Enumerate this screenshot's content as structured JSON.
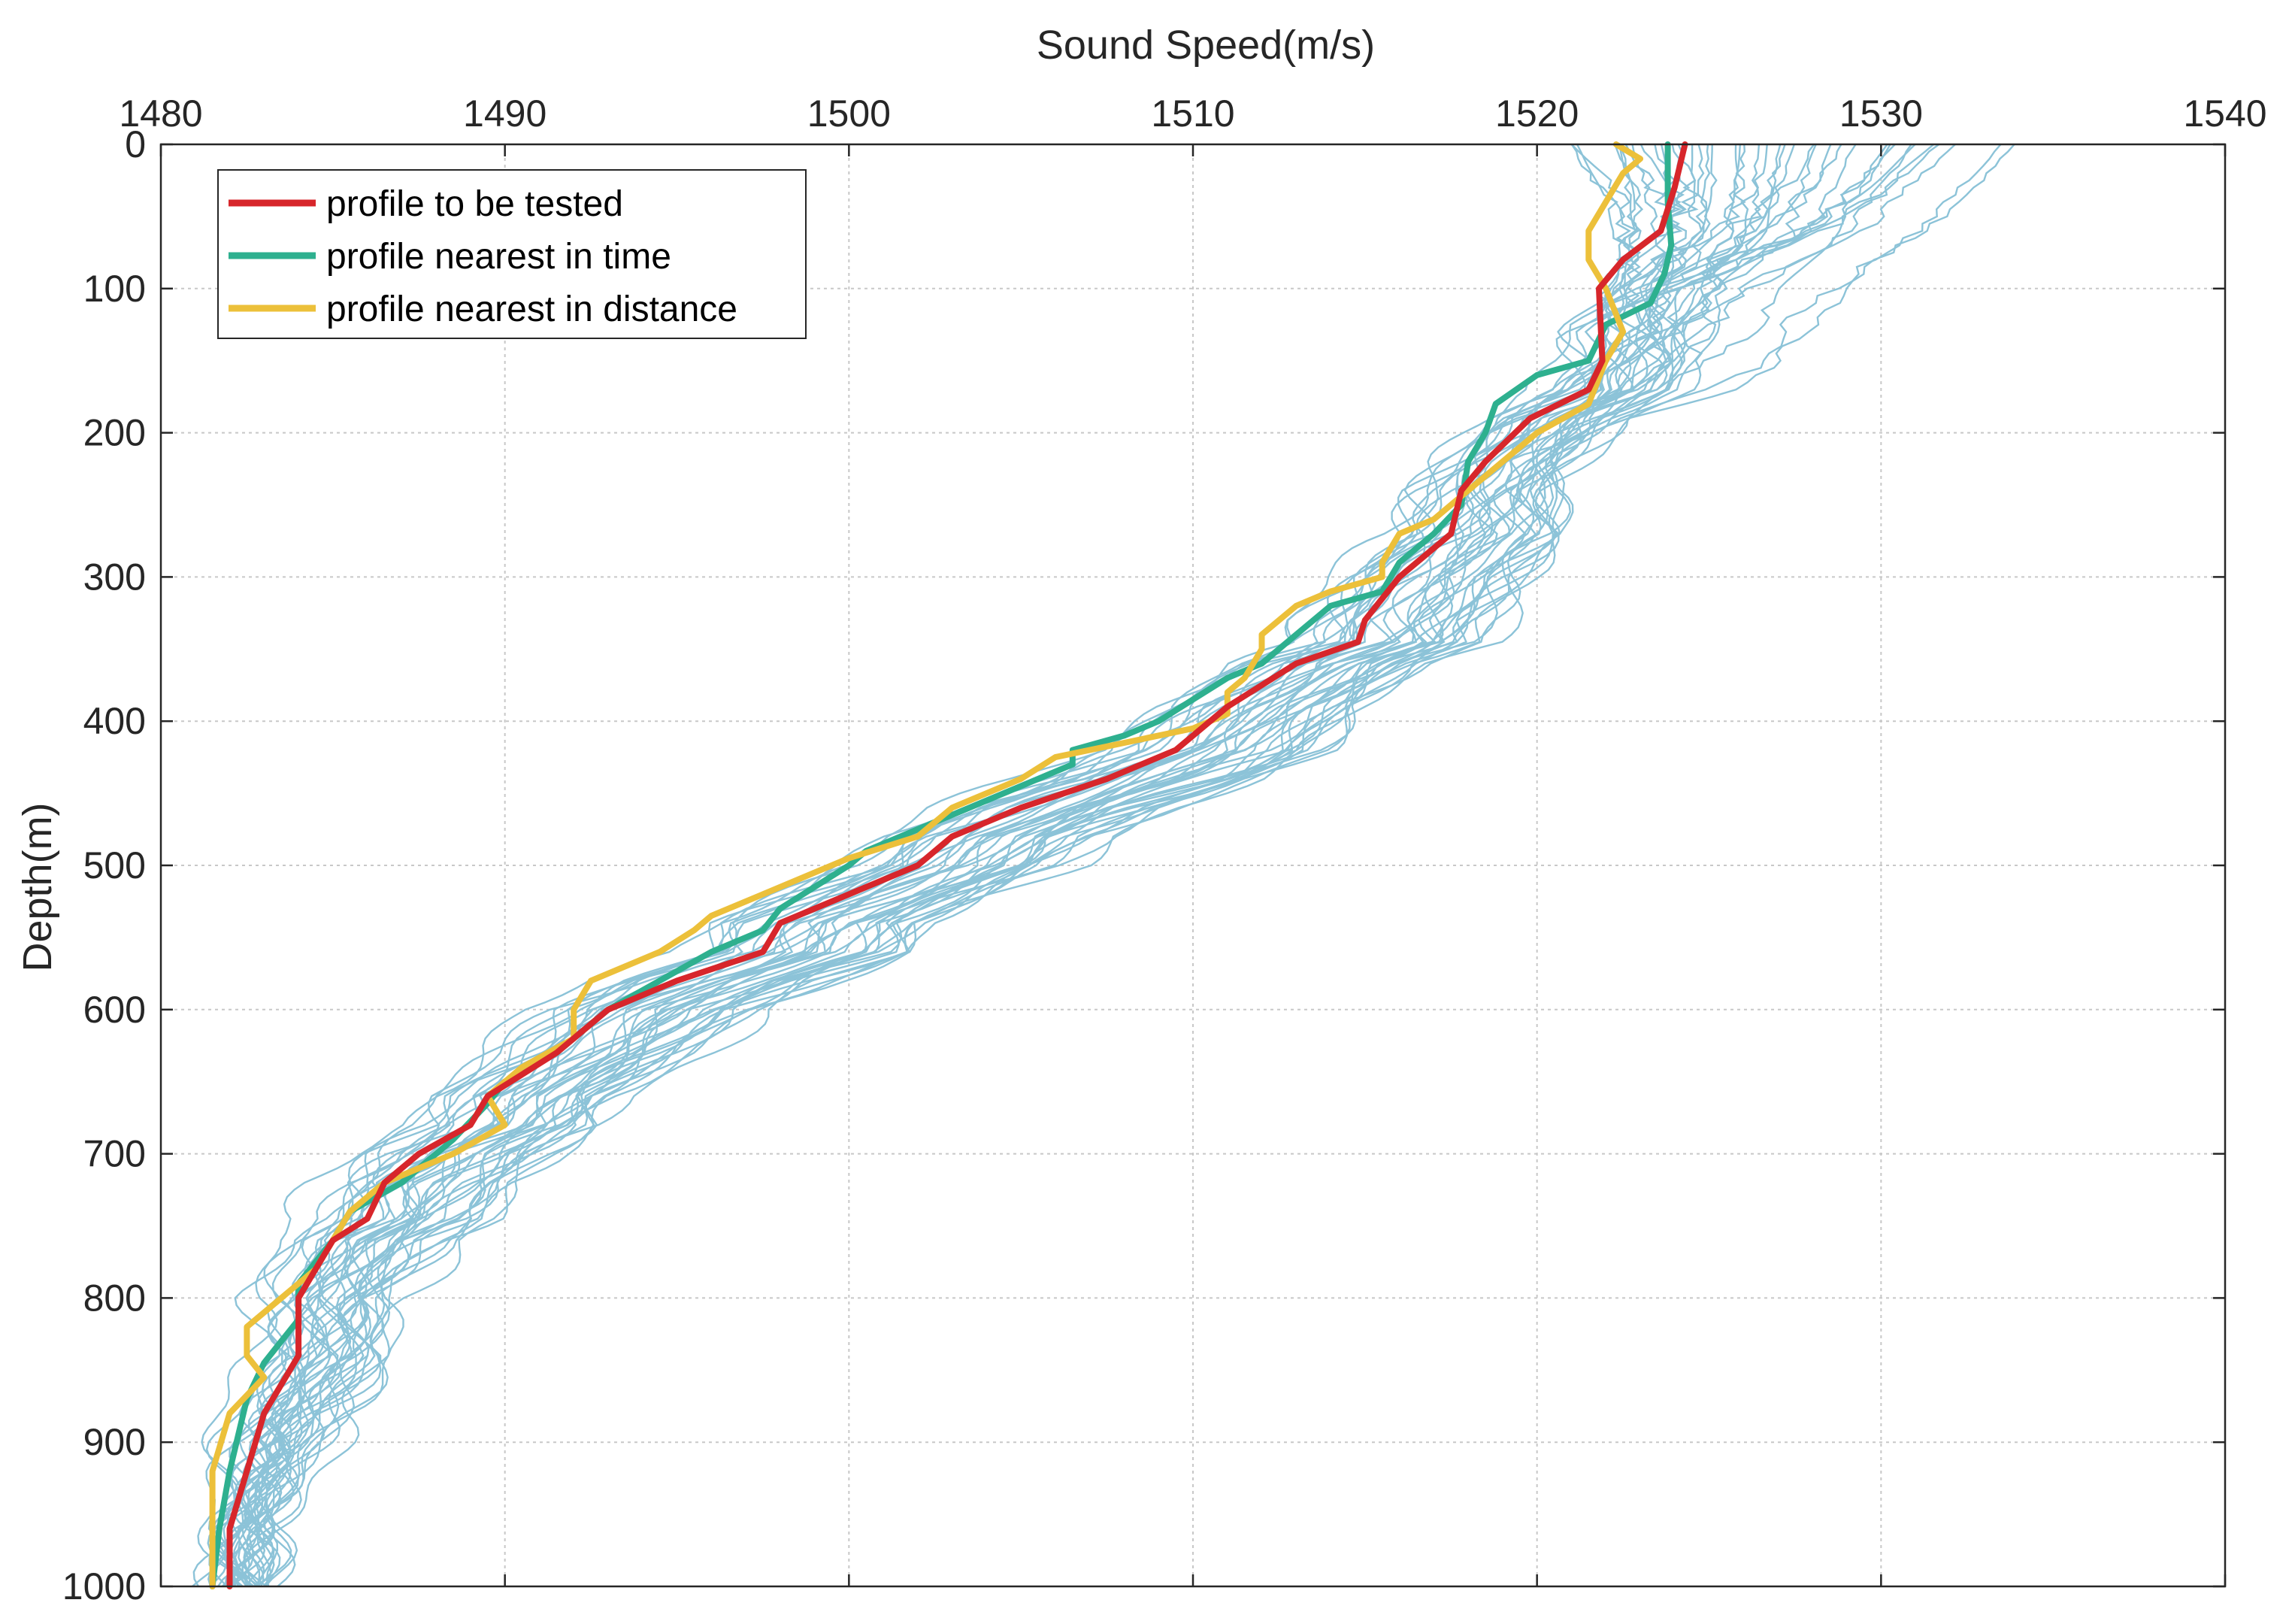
{
  "chart_data": {
    "type": "line",
    "title": "",
    "xlabel": "Sound Speed(m/s)",
    "ylabel": "Depth(m)",
    "xlim": [
      1480,
      1540
    ],
    "ylim": [
      0,
      1000
    ],
    "y_reversed": true,
    "x_axis_position": "top",
    "x_ticks": [
      1480,
      1490,
      1500,
      1510,
      1520,
      1530,
      1540
    ],
    "x_tick_labels": [
      "1480",
      "1490",
      "1500",
      "1510",
      "1520",
      "1530",
      "1540"
    ],
    "y_ticks": [
      0,
      100,
      200,
      300,
      400,
      500,
      600,
      700,
      800,
      900,
      1000
    ],
    "y_tick_labels": [
      "0",
      "100",
      "200",
      "300",
      "400",
      "500",
      "600",
      "700",
      "800",
      "900",
      "1000"
    ],
    "grid": true,
    "legend_position": "top-left",
    "series": [
      {
        "name": "profile to be tested",
        "color": "#d7262b",
        "in_legend": true,
        "points": [
          [
            1524.3,
            0
          ],
          [
            1524.0,
            30
          ],
          [
            1523.6,
            60
          ],
          [
            1522.5,
            80
          ],
          [
            1521.8,
            100
          ],
          [
            1521.9,
            150
          ],
          [
            1521.5,
            170
          ],
          [
            1519.8,
            190
          ],
          [
            1518.5,
            220
          ],
          [
            1517.8,
            240
          ],
          [
            1517.5,
            270
          ],
          [
            1516.0,
            300
          ],
          [
            1515.0,
            330
          ],
          [
            1514.8,
            345
          ],
          [
            1513.0,
            360
          ],
          [
            1511.0,
            390
          ],
          [
            1509.5,
            420
          ],
          [
            1507.5,
            440
          ],
          [
            1505.0,
            460
          ],
          [
            1503.0,
            480
          ],
          [
            1502.0,
            500
          ],
          [
            1500.0,
            520
          ],
          [
            1498.0,
            540
          ],
          [
            1497.5,
            560
          ],
          [
            1495.0,
            580
          ],
          [
            1493.0,
            600
          ],
          [
            1491.5,
            630
          ],
          [
            1490.5,
            645
          ],
          [
            1489.5,
            660
          ],
          [
            1489.0,
            680
          ],
          [
            1487.5,
            700
          ],
          [
            1486.5,
            720
          ],
          [
            1486.0,
            745
          ],
          [
            1485.0,
            760
          ],
          [
            1484.5,
            780
          ],
          [
            1484.0,
            800
          ],
          [
            1484.0,
            840
          ],
          [
            1483.5,
            860
          ],
          [
            1483.0,
            880
          ],
          [
            1482.5,
            920
          ],
          [
            1482.0,
            960
          ],
          [
            1482.0,
            1000
          ]
        ]
      },
      {
        "name": "profile nearest in time",
        "color": "#2eb08f",
        "in_legend": true,
        "points": [
          [
            1523.8,
            0
          ],
          [
            1523.8,
            40
          ],
          [
            1523.9,
            70
          ],
          [
            1523.7,
            90
          ],
          [
            1523.3,
            110
          ],
          [
            1522.0,
            125
          ],
          [
            1521.5,
            150
          ],
          [
            1520.0,
            160
          ],
          [
            1518.8,
            180
          ],
          [
            1518.5,
            200
          ],
          [
            1518.0,
            220
          ],
          [
            1517.8,
            250
          ],
          [
            1517.0,
            270
          ],
          [
            1516.0,
            290
          ],
          [
            1515.5,
            310
          ],
          [
            1514.0,
            320
          ],
          [
            1513.0,
            340
          ],
          [
            1512.0,
            360
          ],
          [
            1511.0,
            370
          ],
          [
            1510.0,
            385
          ],
          [
            1509.0,
            400
          ],
          [
            1508.0,
            410
          ],
          [
            1506.5,
            420
          ],
          [
            1506.5,
            430
          ],
          [
            1505.5,
            440
          ],
          [
            1503.5,
            460
          ],
          [
            1502.0,
            475
          ],
          [
            1500.5,
            490
          ],
          [
            1500.0,
            500
          ],
          [
            1498.0,
            530
          ],
          [
            1497.5,
            545
          ],
          [
            1496.0,
            560
          ],
          [
            1494.5,
            580
          ],
          [
            1493.0,
            600
          ],
          [
            1491.5,
            630
          ],
          [
            1490.0,
            650
          ],
          [
            1489.5,
            665
          ],
          [
            1488.5,
            690
          ],
          [
            1487.0,
            720
          ],
          [
            1485.5,
            740
          ],
          [
            1485.0,
            760
          ],
          [
            1484.0,
            790
          ],
          [
            1484.0,
            815
          ],
          [
            1483.5,
            830
          ],
          [
            1483.0,
            845
          ],
          [
            1482.5,
            870
          ],
          [
            1482.0,
            920
          ],
          [
            1481.7,
            960
          ],
          [
            1481.5,
            1000
          ]
        ]
      },
      {
        "name": "profile nearest in distance",
        "color": "#ecc03a",
        "in_legend": true,
        "points": [
          [
            1522.3,
            0
          ],
          [
            1523.0,
            10
          ],
          [
            1522.5,
            20
          ],
          [
            1522.0,
            40
          ],
          [
            1521.5,
            60
          ],
          [
            1521.5,
            80
          ],
          [
            1522.0,
            100
          ],
          [
            1522.5,
            130
          ],
          [
            1522.0,
            150
          ],
          [
            1521.5,
            180
          ],
          [
            1520.0,
            200
          ],
          [
            1519.0,
            220
          ],
          [
            1518.0,
            240
          ],
          [
            1517.0,
            260
          ],
          [
            1516.0,
            270
          ],
          [
            1515.5,
            290
          ],
          [
            1515.5,
            300
          ],
          [
            1514.0,
            310
          ],
          [
            1513.0,
            320
          ],
          [
            1512.0,
            340
          ],
          [
            1512.0,
            350
          ],
          [
            1511.5,
            370
          ],
          [
            1511.0,
            380
          ],
          [
            1511.0,
            395
          ],
          [
            1510.0,
            405
          ],
          [
            1508.0,
            415
          ],
          [
            1506.0,
            425
          ],
          [
            1505.0,
            440
          ],
          [
            1503.0,
            460
          ],
          [
            1502.0,
            480
          ],
          [
            1500.0,
            495
          ],
          [
            1499.0,
            505
          ],
          [
            1497.5,
            520
          ],
          [
            1496.0,
            535
          ],
          [
            1495.5,
            545
          ],
          [
            1494.5,
            560
          ],
          [
            1492.5,
            580
          ],
          [
            1492.0,
            600
          ],
          [
            1492.0,
            620
          ],
          [
            1490.5,
            640
          ],
          [
            1489.5,
            660
          ],
          [
            1490.0,
            680
          ],
          [
            1488.5,
            700
          ],
          [
            1486.5,
            720
          ],
          [
            1485.5,
            740
          ],
          [
            1485.0,
            760
          ],
          [
            1484.5,
            780
          ],
          [
            1483.5,
            800
          ],
          [
            1482.5,
            820
          ],
          [
            1482.5,
            840
          ],
          [
            1483.0,
            855
          ],
          [
            1482.0,
            880
          ],
          [
            1481.5,
            920
          ],
          [
            1481.5,
            960
          ],
          [
            1481.5,
            1000
          ]
        ]
      }
    ],
    "background_series": {
      "name": "ensemble profiles",
      "color": "#8cc3d8",
      "in_legend": false,
      "count": 40,
      "surface_speed_range": [
        1521,
        1534
      ],
      "bottom_speed_range": [
        1481,
        1484
      ]
    }
  }
}
